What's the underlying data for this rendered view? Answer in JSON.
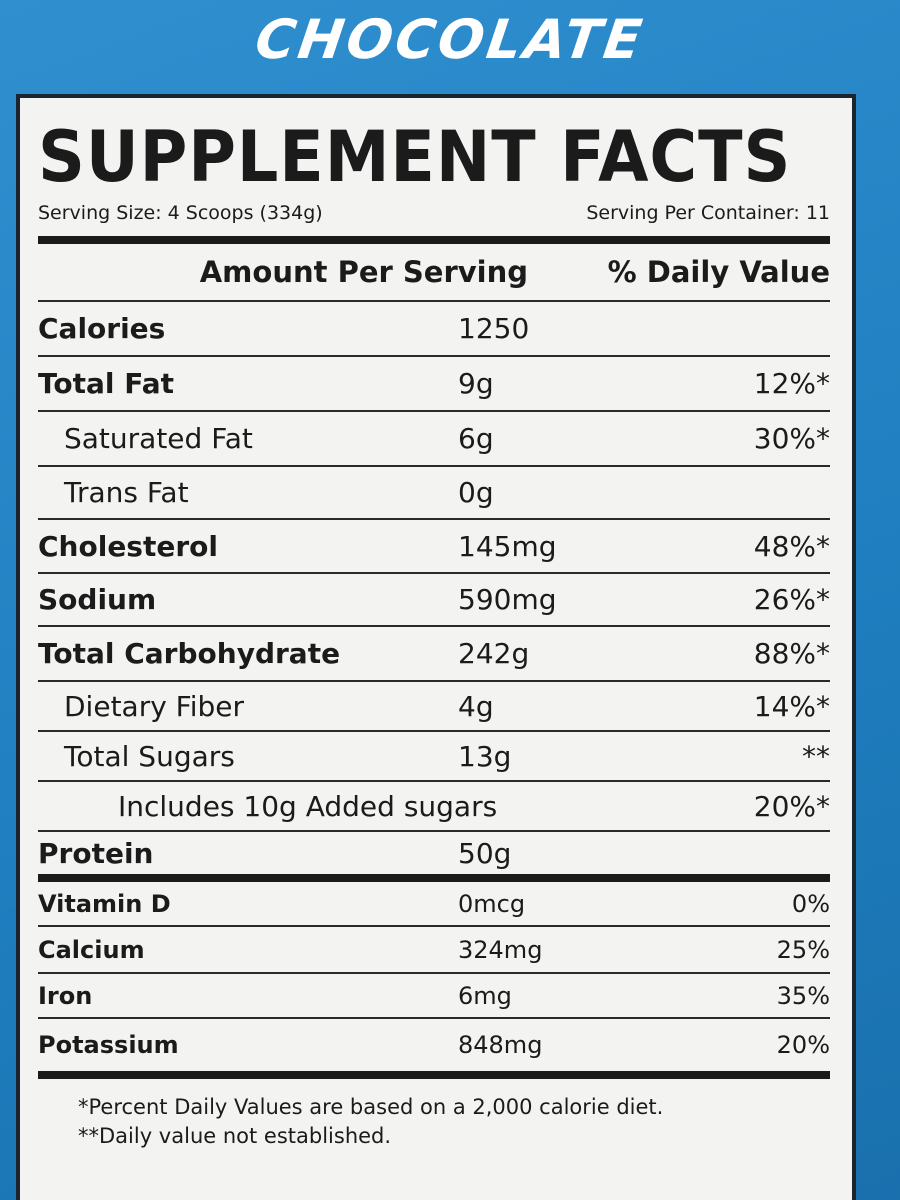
{
  "flavor": "CHOCOLATE",
  "label": {
    "title": "SUPPLEMENT FACTS",
    "serving_size": "Serving Size: 4 Scoops (334g)",
    "servings_per_container": "Serving Per Container: 11",
    "header": [
      "Amount Per Serving",
      "% Daily Value"
    ],
    "rows": [
      {
        "name": "Calories",
        "amount": "1250"
      },
      {
        "name": "Total Fat",
        "amount": "9g",
        "dv": "12%*"
      },
      {
        "name": "Saturated Fat",
        "amount": "6g",
        "dv": "30%*"
      },
      {
        "name": "Trans Fat",
        "amount": "0g"
      },
      {
        "name": "Cholesterol",
        "amount": "145mg",
        "dv": "48%*"
      },
      {
        "name": "Sodium",
        "amount": "590mg",
        "dv": "26%*"
      },
      {
        "name": "Total Carbohydrate",
        "amount": "242g",
        "dv": "88%*"
      },
      {
        "name": "Dietary Fiber",
        "amount": "4g",
        "dv": "14%*"
      },
      {
        "name": "Total Sugars",
        "amount": "13g",
        "dv": "**"
      },
      {
        "name": "Includes 10g Added sugars",
        "dv": "20%*"
      },
      {
        "name": "Protein",
        "amount": "50g"
      },
      {
        "name": "Vitamin D",
        "amount": "0mcg",
        "dv": "0%"
      },
      {
        "name": "Calcium",
        "amount": "324mg",
        "dv": "25%"
      },
      {
        "name": "Iron",
        "amount": "6mg",
        "dv": "35%"
      },
      {
        "name": "Potassium",
        "amount": "848mg",
        "dv": "20%"
      }
    ],
    "footnotes": [
      "*Percent Daily Values are based on a 2,000 calorie diet.",
      "**Daily value not established."
    ]
  }
}
